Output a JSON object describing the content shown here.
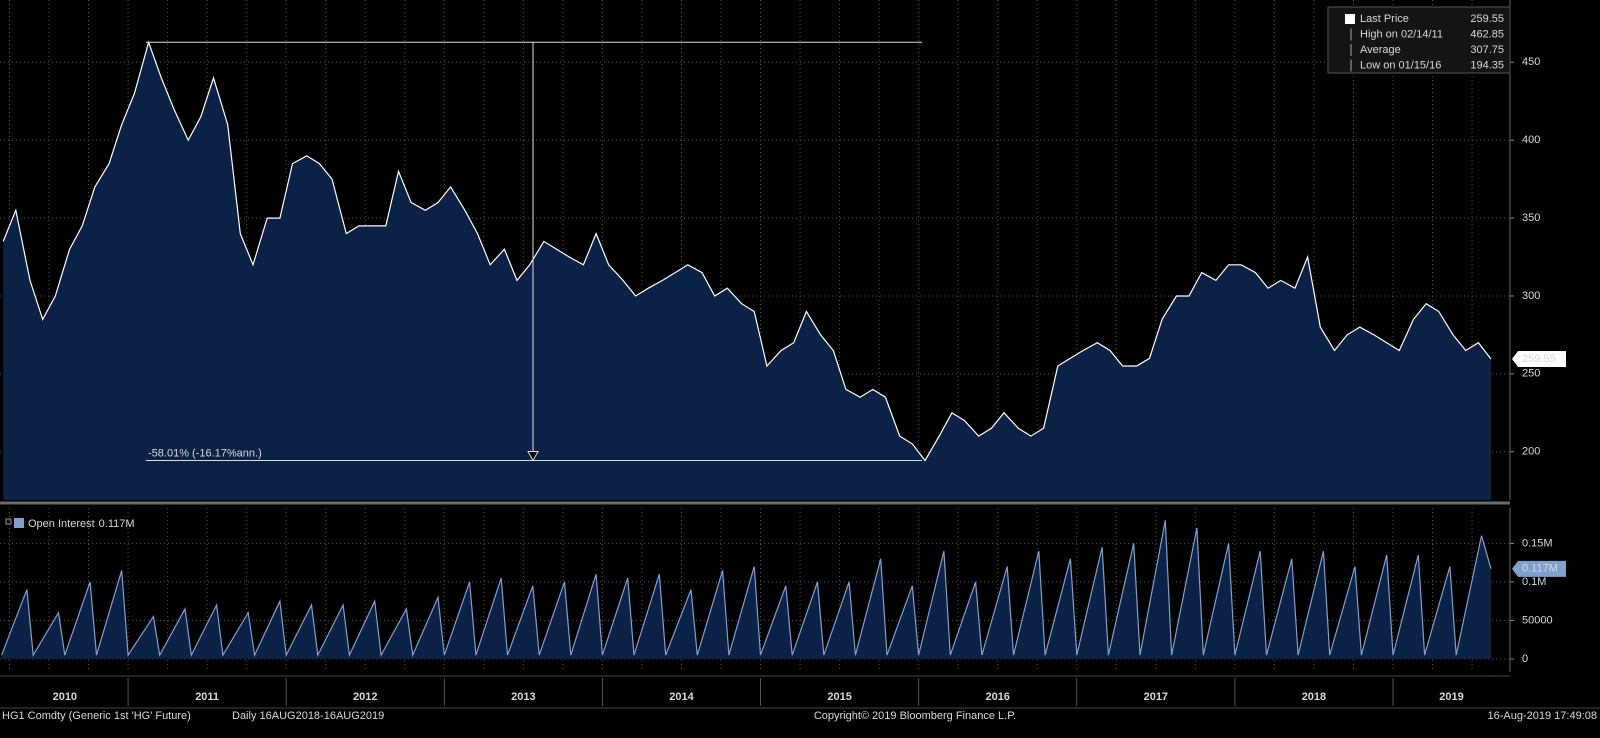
{
  "chart_data": [
    {
      "type": "area",
      "legend": [
        {
          "label": "Last Price",
          "value": 259.55
        },
        {
          "label": "High on 02/14/11",
          "value": 462.85
        },
        {
          "label": "Average",
          "value": 307.75
        },
        {
          "label": "Low on 01/15/16",
          "value": 194.35
        }
      ],
      "annotation": "-58.01% (-16.17%ann.)",
      "x": [
        2010.21,
        2010.29,
        2010.38,
        2010.46,
        2010.54,
        2010.63,
        2010.71,
        2010.79,
        2010.88,
        2010.96,
        2011.04,
        2011.13,
        2011.21,
        2011.29,
        2011.38,
        2011.46,
        2011.54,
        2011.63,
        2011.71,
        2011.79,
        2011.88,
        2011.96,
        2012.04,
        2012.13,
        2012.21,
        2012.29,
        2012.38,
        2012.46,
        2012.54,
        2012.63,
        2012.71,
        2012.79,
        2012.88,
        2012.96,
        2013.04,
        2013.13,
        2013.21,
        2013.29,
        2013.38,
        2013.46,
        2013.54,
        2013.63,
        2013.71,
        2013.79,
        2013.88,
        2013.96,
        2014.04,
        2014.13,
        2014.21,
        2014.29,
        2014.38,
        2014.46,
        2014.54,
        2014.63,
        2014.71,
        2014.79,
        2014.88,
        2014.96,
        2015.04,
        2015.13,
        2015.21,
        2015.29,
        2015.38,
        2015.46,
        2015.54,
        2015.63,
        2015.71,
        2015.79,
        2015.88,
        2015.96,
        2016.04,
        2016.13,
        2016.21,
        2016.29,
        2016.38,
        2016.46,
        2016.54,
        2016.63,
        2016.71,
        2016.79,
        2016.88,
        2016.96,
        2017.04,
        2017.13,
        2017.21,
        2017.29,
        2017.38,
        2017.46,
        2017.54,
        2017.63,
        2017.71,
        2017.79,
        2017.88,
        2017.96,
        2018.04,
        2018.13,
        2018.21,
        2018.29,
        2018.38,
        2018.46,
        2018.54,
        2018.63,
        2018.71,
        2018.79,
        2018.88,
        2018.96,
        2019.04,
        2019.13,
        2019.21,
        2019.29,
        2019.38,
        2019.46,
        2019.54,
        2019.62
      ],
      "series": [
        {
          "name": "Last Price",
          "color": "#ffffff",
          "fill": "#0b2145",
          "values": [
            335,
            355,
            310,
            285,
            300,
            330,
            345,
            370,
            385,
            410,
            430,
            462.85,
            440,
            420,
            400,
            415,
            440,
            410,
            340,
            320,
            350,
            350,
            385,
            390,
            385,
            375,
            340,
            345,
            345,
            345,
            380,
            360,
            355,
            360,
            370,
            355,
            340,
            320,
            330,
            310,
            320,
            335,
            330,
            325,
            320,
            340,
            320,
            310,
            300,
            305,
            310,
            315,
            320,
            315,
            300,
            305,
            295,
            290,
            255,
            265,
            270,
            290,
            275,
            265,
            240,
            235,
            240,
            235,
            210,
            205,
            194.35,
            210,
            225,
            220,
            210,
            215,
            225,
            215,
            210,
            215,
            255,
            260,
            265,
            270,
            265,
            255,
            255,
            260,
            285,
            300,
            300,
            315,
            310,
            320,
            320,
            315,
            305,
            310,
            305,
            325,
            280,
            265,
            275,
            280,
            275,
            270,
            265,
            285,
            295,
            290,
            275,
            265,
            270,
            259.55
          ]
        }
      ],
      "xlim": [
        2010.19,
        2019.74
      ],
      "ylim": [
        169,
        490
      ],
      "yticks": [
        200,
        250,
        300,
        350,
        400,
        450
      ],
      "grid": true
    },
    {
      "type": "area",
      "x": [
        2010.2,
        2010.36,
        2010.4,
        2010.56,
        2010.6,
        2010.76,
        2010.8,
        2010.96,
        2011,
        2011.16,
        2011.2,
        2011.36,
        2011.4,
        2011.56,
        2011.6,
        2011.76,
        2011.8,
        2011.96,
        2012,
        2012.16,
        2012.2,
        2012.36,
        2012.4,
        2012.56,
        2012.6,
        2012.76,
        2012.8,
        2012.96,
        2013,
        2013.16,
        2013.2,
        2013.36,
        2013.4,
        2013.56,
        2013.6,
        2013.76,
        2013.8,
        2013.96,
        2014,
        2014.16,
        2014.2,
        2014.36,
        2014.4,
        2014.56,
        2014.6,
        2014.76,
        2014.8,
        2014.96,
        2015,
        2015.16,
        2015.2,
        2015.36,
        2015.4,
        2015.56,
        2015.6,
        2015.76,
        2015.8,
        2015.96,
        2016,
        2016.16,
        2016.2,
        2016.36,
        2016.4,
        2016.56,
        2016.6,
        2016.76,
        2016.8,
        2016.96,
        2017,
        2017.16,
        2017.2,
        2017.36,
        2017.4,
        2017.56,
        2017.6,
        2017.76,
        2017.8,
        2017.96,
        2018,
        2018.16,
        2018.2,
        2018.36,
        2018.4,
        2018.56,
        2018.6,
        2018.76,
        2018.8,
        2018.96,
        2019,
        2019.16,
        2019.2,
        2019.36,
        2019.4,
        2019.56,
        2019.62
      ],
      "series": [
        {
          "name": "Open Interest",
          "color": "#7fa1cf",
          "fill": "#0b2145",
          "values": [
            5000,
            90000,
            5000,
            60000,
            5000,
            100000,
            5000,
            115000,
            5000,
            55000,
            5000,
            65000,
            5000,
            70000,
            5000,
            60000,
            5000,
            75000,
            5000,
            70000,
            5000,
            70000,
            5000,
            75000,
            5000,
            65000,
            5000,
            80000,
            5000,
            100000,
            5000,
            105000,
            5000,
            95000,
            5000,
            100000,
            5000,
            110000,
            5000,
            105000,
            5000,
            110000,
            5000,
            90000,
            5000,
            115000,
            5000,
            120000,
            5000,
            95000,
            5000,
            100000,
            5000,
            100000,
            5000,
            130000,
            5000,
            95000,
            5000,
            140000,
            5000,
            100000,
            5000,
            120000,
            5000,
            140000,
            5000,
            130000,
            5000,
            145000,
            5000,
            150000,
            5000,
            180000,
            5000,
            170000,
            5000,
            150000,
            5000,
            140000,
            5000,
            130000,
            5000,
            140000,
            5000,
            120000,
            5000,
            135000,
            5000,
            135000,
            5000,
            120000,
            5000,
            160000,
            117000
          ],
          "last": {
            "value": 117000,
            "label": "0.117M"
          }
        }
      ],
      "xlim": [
        2010.19,
        2019.74
      ],
      "ylim": [
        -17000,
        196000
      ],
      "yticks": [
        0,
        50000,
        {
          "value": 100000,
          "label": "0.1M"
        },
        {
          "value": 150000,
          "label": "0.15M"
        }
      ],
      "xticks": [
        {
          "value": 2010.6,
          "label": "2010"
        },
        {
          "value": 2011.5,
          "label": "2011"
        },
        {
          "value": 2012.5,
          "label": "2012"
        },
        {
          "value": 2013.5,
          "label": "2013"
        },
        {
          "value": 2014.5,
          "label": "2014"
        },
        {
          "value": 2015.5,
          "label": "2015"
        },
        {
          "value": 2016.5,
          "label": "2016"
        },
        {
          "value": 2017.5,
          "label": "2017"
        },
        {
          "value": 2018.5,
          "label": "2018"
        },
        {
          "value": 2019.37,
          "label": "2019"
        }
      ],
      "grid": true
    }
  ],
  "footer": {
    "security": "HG1 Comdty (Generic 1st 'HG' Future)",
    "period": "Daily 16AUG2018-16AUG2019",
    "copyright": "Copyright© 2019 Bloomberg Finance L.P.",
    "timestamp": "16-Aug-2019 17:49:08"
  }
}
